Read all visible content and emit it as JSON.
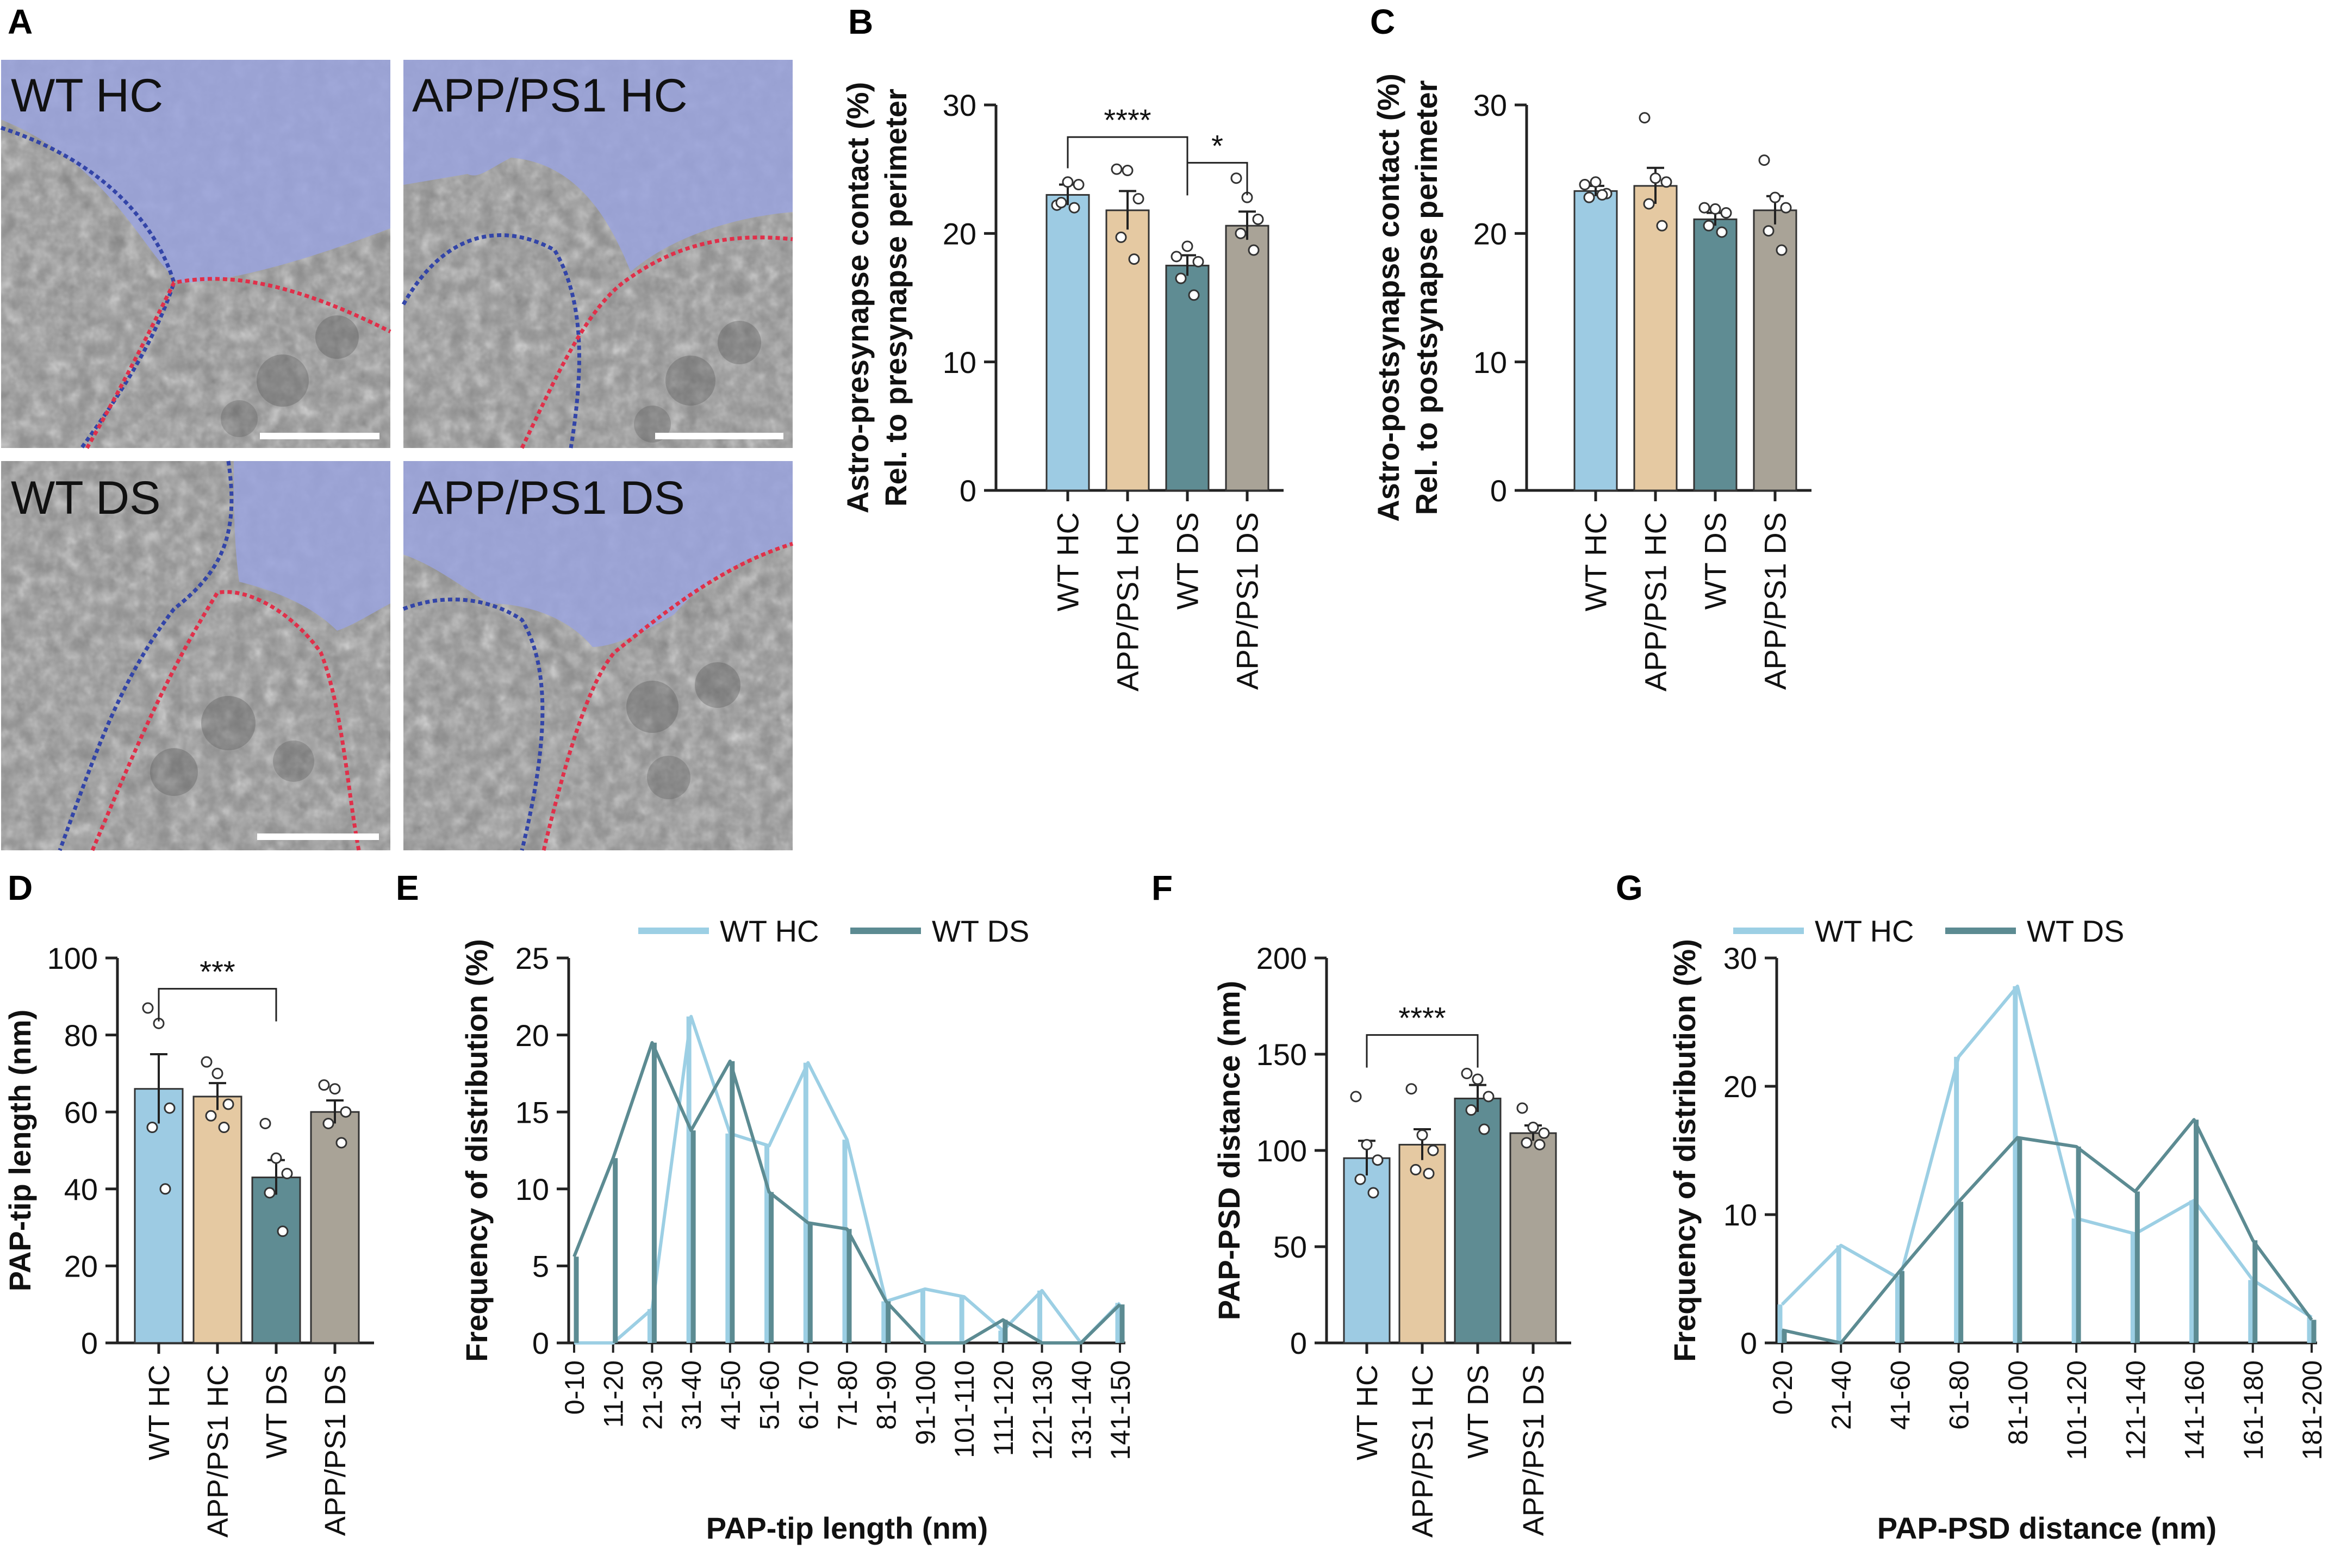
{
  "figure": {
    "panel_letters": [
      "A",
      "B",
      "C",
      "D",
      "E",
      "F",
      "G"
    ]
  },
  "micrographs": [
    {
      "label": "WT HC"
    },
    {
      "label": "APP/PS1 HC"
    },
    {
      "label": "WT DS"
    },
    {
      "label": "APP/PS1 DS"
    }
  ],
  "colors": {
    "wt_hc": "#9dcbe3",
    "app_hc": "#e5c9a2",
    "wt_ds": "#5f8c93",
    "app_ds": "#a9a397",
    "line_wt_hc": "#9ccfe4",
    "line_wt_ds": "#5c8b92",
    "membrane_blue": "#3345a8",
    "membrane_red": "#e0304a",
    "astro_overlay": "#9aa3dd"
  },
  "chart_data": [
    {
      "id": "B",
      "type": "bar",
      "ylabel_lines": [
        "Astro-presynapse contact (%)",
        "Rel. to presynapse perimeter"
      ],
      "categories": [
        "WT HC",
        "APP/PS1 HC",
        "WT DS",
        "APP/PS1 DS"
      ],
      "values": [
        23.0,
        21.8,
        17.5,
        20.6
      ],
      "sem": [
        0.8,
        1.5,
        0.8,
        1.1
      ],
      "points": [
        [
          22.2,
          24.0,
          23.8,
          22.4,
          22.0
        ],
        [
          25.0,
          24.9,
          22.7,
          19.7,
          18.0
        ],
        [
          18.2,
          19.0,
          17.8,
          16.5,
          15.2
        ],
        [
          24.3,
          22.8,
          21.1,
          20.0,
          18.7
        ]
      ],
      "ylim": [
        0,
        30
      ],
      "yticks": [
        0,
        10,
        20,
        30
      ],
      "significance": [
        {
          "from": 0,
          "to": 2,
          "label": "****",
          "y": 27.5
        },
        {
          "from": 2,
          "to": 3,
          "label": "*",
          "y": 25.5
        }
      ]
    },
    {
      "id": "C",
      "type": "bar",
      "ylabel_lines": [
        "Astro-postsynapse contact (%)",
        "Rel. to postsynapse perimeter"
      ],
      "categories": [
        "WT HC",
        "APP/PS1 HC",
        "WT DS",
        "APP/PS1 DS"
      ],
      "values": [
        23.3,
        23.7,
        21.1,
        21.8
      ],
      "sem": [
        0.4,
        1.4,
        0.5,
        1.1
      ],
      "points": [
        [
          23.8,
          24.0,
          23.1,
          22.8,
          23.0
        ],
        [
          29.0,
          24.3,
          24.0,
          22.3,
          20.6
        ],
        [
          22.0,
          21.9,
          21.6,
          20.6,
          20.1
        ],
        [
          25.7,
          22.8,
          22.0,
          20.2,
          18.7
        ]
      ],
      "ylim": [
        0,
        30
      ],
      "yticks": [
        0,
        10,
        20,
        30
      ],
      "significance": []
    },
    {
      "id": "D",
      "type": "bar",
      "ylabel_lines": [
        "PAP-tip length (nm)"
      ],
      "categories": [
        "WT HC",
        "APP/PS1 HC",
        "WT DS",
        "APP/PS1 DS"
      ],
      "values": [
        66,
        64,
        43,
        60
      ],
      "sem": [
        9,
        3.5,
        4.5,
        3
      ],
      "points": [
        [
          87,
          83,
          61,
          56,
          40
        ],
        [
          73,
          70,
          62,
          59,
          56
        ],
        [
          57,
          48,
          44,
          39,
          29
        ],
        [
          67,
          66,
          60,
          57,
          52
        ]
      ],
      "ylim": [
        0,
        100
      ],
      "yticks": [
        0,
        20,
        40,
        60,
        80,
        100
      ],
      "significance": [
        {
          "from": 0,
          "to": 2,
          "label": "***",
          "y": 92
        }
      ]
    },
    {
      "id": "E",
      "type": "line",
      "ylabel": "Frequency of distribution (%)",
      "xlabel": "PAP-tip length (nm)",
      "categories": [
        "0-10",
        "11-20",
        "21-30",
        "31-40",
        "41-50",
        "51-60",
        "61-70",
        "71-80",
        "81-90",
        "91-100",
        "101-110",
        "111-120",
        "121-130",
        "131-140",
        "141-150"
      ],
      "series": [
        {
          "name": "WT HC",
          "values": [
            0,
            0,
            2.2,
            21.2,
            13.6,
            12.8,
            18.2,
            13.2,
            2.7,
            3.5,
            3.0,
            0.8,
            3.4,
            0,
            2.6
          ]
        },
        {
          "name": "WT DS",
          "values": [
            5.6,
            12.0,
            19.5,
            13.8,
            18.3,
            9.8,
            7.8,
            7.4,
            2.7,
            0,
            0,
            1.5,
            0,
            0,
            2.5
          ]
        }
      ],
      "ylim": [
        0,
        25
      ],
      "yticks": [
        0,
        5,
        10,
        15,
        20,
        25
      ]
    },
    {
      "id": "F",
      "type": "bar",
      "ylabel_lines": [
        "PAP-PSD distance (nm)"
      ],
      "categories": [
        "WT HC",
        "APP/PS1 HC",
        "WT DS",
        "APP/PS1 DS"
      ],
      "values": [
        96,
        103,
        127,
        109
      ],
      "sem": [
        9,
        8,
        7,
        4
      ],
      "points": [
        [
          128,
          103,
          95,
          85,
          78
        ],
        [
          132,
          108,
          100,
          90,
          88
        ],
        [
          140,
          137,
          128,
          121,
          111
        ],
        [
          122,
          112,
          109,
          104,
          103
        ]
      ],
      "ylim": [
        0,
        200
      ],
      "yticks": [
        0,
        50,
        100,
        150,
        200
      ],
      "significance": [
        {
          "from": 0,
          "to": 2,
          "label": "****",
          "y": 160
        }
      ]
    },
    {
      "id": "G",
      "type": "line",
      "ylabel": "Frequency of distribution (%)",
      "xlabel": "PAP-PSD distance (nm)",
      "categories": [
        "0-20",
        "21-40",
        "41-60",
        "61-80",
        "81-100",
        "101-120",
        "121-140",
        "141-160",
        "161-180",
        "181-200"
      ],
      "series": [
        {
          "name": "WT HC",
          "values": [
            3.0,
            7.6,
            5.0,
            22.3,
            27.8,
            9.7,
            8.5,
            11.1,
            4.9,
            2.0
          ]
        },
        {
          "name": "WT DS",
          "values": [
            1.0,
            0,
            5.6,
            11.0,
            16.0,
            15.3,
            11.8,
            17.4,
            8.0,
            1.8
          ]
        }
      ],
      "ylim": [
        0,
        30
      ],
      "yticks": [
        0,
        10,
        20,
        30
      ]
    }
  ]
}
